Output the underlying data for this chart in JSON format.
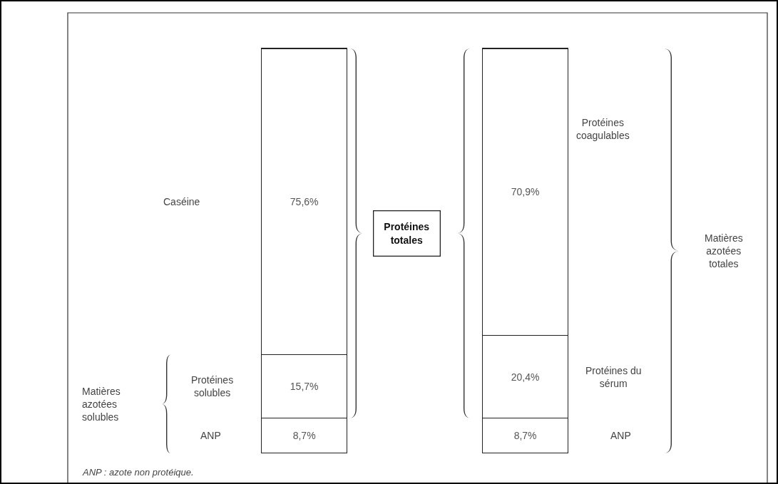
{
  "chart_data": {
    "type": "bar",
    "stacked": true,
    "categories": [
      null,
      null
    ],
    "series": [
      {
        "color": "#ffffff",
        "values": [
          8.7,
          8.7
        ],
        "value_labels": [
          "8,7%",
          "8,7%"
        ]
      },
      {
        "color": "#ffffff",
        "values": [
          15.7,
          20.4
        ],
        "value_labels": [
          "15,7%",
          "20,4%"
        ]
      },
      {
        "color": "#ffffff",
        "values": [
          75.6,
          70.9
        ],
        "value_labels": [
          "75,6%",
          "70,9%"
        ]
      }
    ],
    "annotations": [
      "Caséine",
      "Protéines\nsolubles",
      "ANP",
      "Matières\nazotées\nsolubles",
      "Protéines\ntotales",
      "Protéines\ncoagulables",
      "Protéines du\nsérum",
      "ANP",
      "Matières\nazotées\ntotales",
      "ANP : azote non protéique."
    ]
  }
}
